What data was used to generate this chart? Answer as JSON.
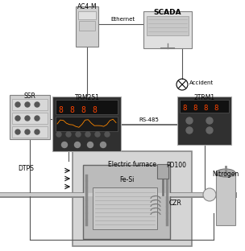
{
  "bg_color": "#ffffff",
  "labels": {
    "ac4m": "AC4-M",
    "ethernet": "Ethernet",
    "scada": "SCADA",
    "ssr": "SSR",
    "trm251": "TRM251",
    "twotrm1": "2TRM1",
    "rs485": "RS-485",
    "accident": "Accident",
    "dtps": "DTPS",
    "electric_furnace": "Electric furnace",
    "fe_si": "Fe-Si",
    "pd100": "PD100",
    "czr": "CZR",
    "nitrogen": "Nitrogen"
  },
  "colors": {
    "bg_color": "#ffffff",
    "box_fill": "#d0d0d0",
    "box_border": "#808080",
    "wire": "#555555",
    "device_dark": "#303030",
    "light_gray": "#e0e0e0",
    "medium_gray": "#999999"
  }
}
